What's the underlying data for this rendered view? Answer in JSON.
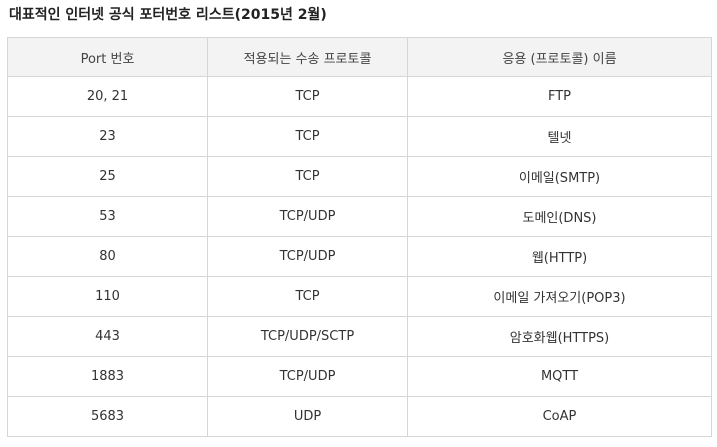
{
  "title": "대표적인 인터넷 공식 포터번호 리스트(2015년 2월)",
  "table": {
    "headers": [
      "Port 번호",
      "적용되는 수송 프로토콜",
      "응용 (프로토콜) 이름"
    ],
    "rows": [
      [
        "20, 21",
        "TCP",
        "FTP"
      ],
      [
        "23",
        "TCP",
        "텔넷"
      ],
      [
        "25",
        "TCP",
        "이메일(SMTP)"
      ],
      [
        "53",
        "TCP/UDP",
        "도메인(DNS)"
      ],
      [
        "80",
        "TCP/UDP",
        "웹(HTTP)"
      ],
      [
        "110",
        "TCP",
        "이메일 가져오기(POP3)"
      ],
      [
        "443",
        "TCP/UDP/SCTP",
        "암호화웹(HTTPS)"
      ],
      [
        "1883",
        "TCP/UDP",
        "MQTT"
      ],
      [
        "5683",
        "UDP",
        "CoAP"
      ]
    ]
  }
}
